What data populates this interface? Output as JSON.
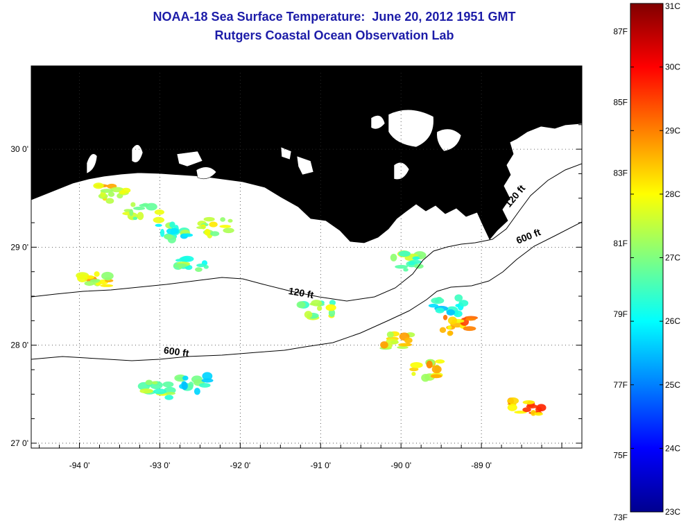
{
  "header": {
    "title": "NOAA-18 Sea Surface Temperature:  June 20, 2012 1951 GMT",
    "subtitle": "Rutgers Coastal Ocean Observation Lab"
  },
  "map": {
    "lon_range": [
      -94.6,
      -87.75
    ],
    "lat_range": [
      26.95,
      30.85
    ],
    "lat_ticks": [
      {
        "value": 30,
        "label": "30 0'"
      },
      {
        "value": 29,
        "label": "29 0'"
      },
      {
        "value": 28,
        "label": "28 0'"
      },
      {
        "value": 27,
        "label": "27 0'"
      }
    ],
    "lon_ticks": [
      {
        "value": -94,
        "label": "-94 0'"
      },
      {
        "value": -93,
        "label": "-93 0'"
      },
      {
        "value": -92,
        "label": "-92 0'"
      },
      {
        "value": -91,
        "label": "-91 0'"
      },
      {
        "value": -90,
        "label": "-90 0'"
      },
      {
        "value": -89,
        "label": "-89 0'"
      }
    ],
    "grid": "dotted",
    "land_color": "#b4b4b4",
    "contour_labels": [
      {
        "text": "120 ft",
        "lon": -91.25,
        "lat": 28.5,
        "rotate": 10
      },
      {
        "text": "600 ft",
        "lon": -92.8,
        "lat": 27.9,
        "rotate": 8
      },
      {
        "text": "120 ft",
        "lon": -88.55,
        "lat": 29.5,
        "rotate": -50
      },
      {
        "text": "600 ft",
        "lon": -88.4,
        "lat": 29.08,
        "rotate": -22
      }
    ]
  },
  "colorbar": {
    "range_c": [
      23,
      31
    ],
    "celsius_ticks": [
      "31C",
      "30C",
      "29C",
      "28C",
      "27C",
      "26C",
      "25C",
      "24C",
      "23C"
    ],
    "fahrenheit_ticks": [
      "87F",
      "85F",
      "83F",
      "81F",
      "79F",
      "77F",
      "75F",
      "73F"
    ],
    "colors": [
      "#00008f",
      "#0000ff",
      "#0080ff",
      "#00ffff",
      "#80ff80",
      "#ffff00",
      "#ff8000",
      "#ff0000",
      "#800000"
    ]
  },
  "sst_patches": [
    {
      "lon": -93.6,
      "lat": 29.55,
      "temp": 28.0
    },
    {
      "lon": -93.2,
      "lat": 29.35,
      "temp": 27.2
    },
    {
      "lon": -92.85,
      "lat": 29.15,
      "temp": 26.5
    },
    {
      "lon": -92.6,
      "lat": 28.85,
      "temp": 26.8
    },
    {
      "lon": -93.8,
      "lat": 28.65,
      "temp": 28.0
    },
    {
      "lon": -92.3,
      "lat": 29.2,
      "temp": 27.6
    },
    {
      "lon": -91.05,
      "lat": 28.35,
      "temp": 27.3
    },
    {
      "lon": -93.0,
      "lat": 27.55,
      "temp": 27.0
    },
    {
      "lon": -92.6,
      "lat": 27.6,
      "temp": 26.4
    },
    {
      "lon": -90.05,
      "lat": 28.05,
      "temp": 28.0
    },
    {
      "lon": -89.3,
      "lat": 28.2,
      "temp": 28.6
    },
    {
      "lon": -89.7,
      "lat": 27.75,
      "temp": 28.1
    },
    {
      "lon": -88.45,
      "lat": 27.35,
      "temp": 28.9
    },
    {
      "lon": -89.95,
      "lat": 28.85,
      "temp": 27.1
    },
    {
      "lon": -89.4,
      "lat": 28.4,
      "temp": 26.0
    }
  ]
}
